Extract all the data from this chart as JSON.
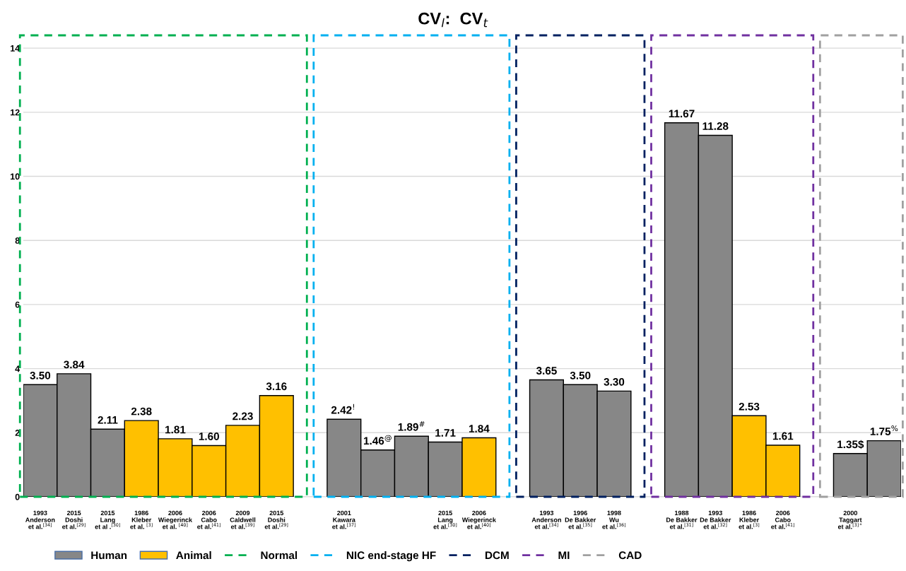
{
  "chart_data": {
    "type": "bar",
    "title": "CV$_{l}$:  CV$_{t}$",
    "categories": [
      "1993\nAnderson\net al.$^{[34]}$",
      "2015\nDoshi\net al.$^{[29]}$",
      "2015\nLang\net al .$^{[30]}$",
      "1986\nKleber\net al. $^{[3]}$",
      "2006\nWiegerinck\net al. $^{[40]}$",
      "2006\nCabo\net al.$^{[41]}$",
      "2009\nCaldwell\net al.$^{[39]}$",
      "2015\nDoshi\net al.$^{[29]}$",
      null,
      "2001\nKawara\net al.$^{[37]}$",
      null,
      null,
      "2015\nLang\net al.$^{[30]}$",
      "2006\nWiegerinck\net al.$^{[40]}$",
      null,
      "1993\nAnderson\net al.$^{[34]}$",
      "1996\nDe Bakker\net al.$^{[35]}$",
      "1998\nWu\net al.$^{[36]}$",
      null,
      "1988\nDe Bakker\net al.$^{[31]}$",
      "1993\nDe Bakker\net al.$^{[32]}$",
      "1986\nKleber\net al.$^{[3]}$",
      "2006\nCabo\net al.$^{[41]}$",
      null,
      "2000\nTaggart\net al.$^{[3]*}$",
      null
    ],
    "series": [
      {
        "name": "Human",
        "color": "#878787",
        "values": [
          3.5,
          3.84,
          2.11,
          null,
          null,
          null,
          null,
          null,
          null,
          2.42,
          1.46,
          1.89,
          1.71,
          null,
          null,
          3.65,
          3.5,
          3.3,
          null,
          11.67,
          11.28,
          null,
          null,
          null,
          1.35,
          1.75
        ],
        "value_labels": [
          "3.50",
          "3.84",
          "2.11",
          null,
          null,
          null,
          null,
          null,
          null,
          "2.42$^{!}$",
          "1.46$^{@}$",
          "1.89$^{#}$",
          "1.71",
          null,
          null,
          "3.65",
          "3.50",
          "3.30",
          null,
          "11.67",
          "11.28",
          null,
          null,
          null,
          "1.35$",
          "1.75$^{%}$"
        ]
      },
      {
        "name": "Animal",
        "color": "#ffc000",
        "values": [
          null,
          null,
          null,
          2.38,
          1.81,
          1.6,
          2.23,
          3.16,
          null,
          null,
          null,
          null,
          null,
          1.84,
          null,
          null,
          null,
          null,
          null,
          null,
          null,
          2.53,
          1.61,
          null,
          null,
          null
        ],
        "value_labels": [
          null,
          null,
          null,
          "2.38",
          "1.81",
          "1.60",
          "2.23",
          "3.16",
          null,
          null,
          null,
          null,
          null,
          "1.84",
          null,
          null,
          null,
          null,
          null,
          null,
          null,
          "2.53",
          "1.61",
          null,
          null,
          null
        ]
      }
    ],
    "annotations": [
      "Normal",
      "NIC end-stage HF",
      "DCM",
      "MI",
      "CAD"
    ],
    "ylim": [
      0,
      14.4
    ],
    "yticks": [
      0,
      2,
      4,
      6,
      8,
      10,
      12,
      14
    ],
    "grid": "y",
    "legend": "bottom"
  }
}
